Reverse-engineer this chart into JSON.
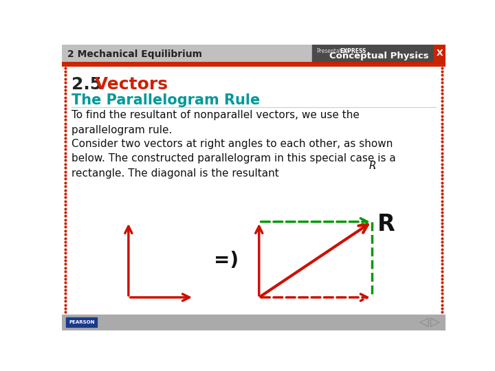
{
  "title_num": "2.5",
  "title_word": " Vectors",
  "subtitle": "The Parallelogram Rule",
  "body_text1": "To find the resultant of nonparallel vectors, we use the\nparallelogram rule.",
  "body_text2": "Consider two vectors at right angles to each other, as shown\nbelow. The constructed parallelogram in this special case is a\nrectangle. The diagonal is the resultant ",
  "body_text2_italic": "R",
  "body_text2_end": ".",
  "header_bg": "#c0c0c0",
  "header_text": "2 Mechanical Equilibrium",
  "header_right_bg": "#4a4a4a",
  "slide_bg": "#ffffff",
  "border_color": "#cc2200",
  "title_num_color": "#222222",
  "title_word_color": "#cc2200",
  "subtitle_color": "#009999",
  "body_color": "#111111",
  "arrow_red": "#cc1100",
  "arrow_green_dashed": "#009900",
  "R_label_color": "#111111",
  "equals_color": "#111111",
  "footer_bg": "#aaaaaa",
  "pearson_bg": "#1a3a8a"
}
